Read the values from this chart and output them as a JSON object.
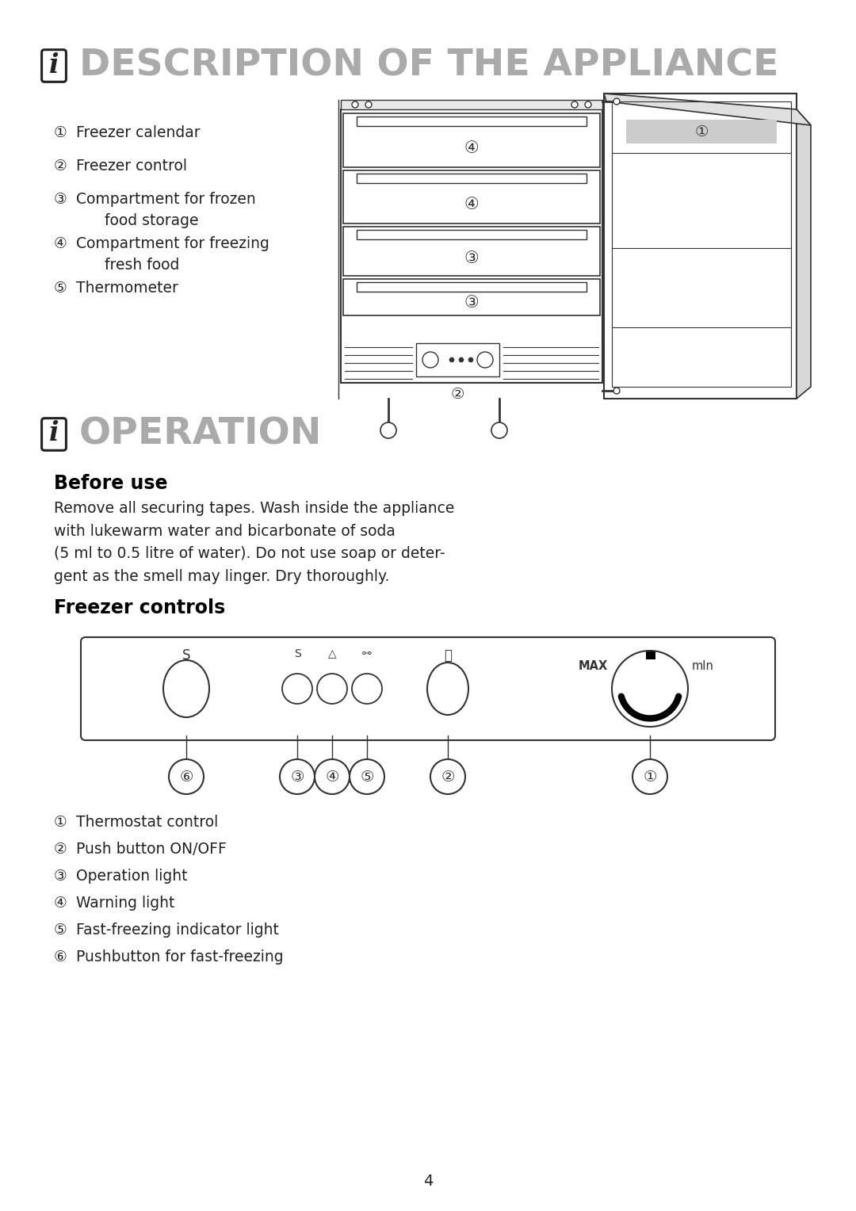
{
  "title1": "DESCRIPTION OF THE APPLIANCE",
  "title2": "OPERATION",
  "section1_items": [
    [
      "①",
      "Freezer calendar"
    ],
    [
      "②",
      "Freezer control"
    ],
    [
      "③",
      "Compartment for frozen\nfood storage"
    ],
    [
      "④",
      "Compartment for freezing\nfresh food"
    ],
    [
      "⑤",
      "Thermometer"
    ]
  ],
  "before_use_title": "Before use",
  "before_use_text": "Remove all securing tapes. Wash inside the appliance\nwith lukewarm water and bicarbonate of soda\n(5 ml to 0.5 litre of water). Do not use soap or deter-\ngent as the smell may linger. Dry thoroughly.",
  "freezer_controls_title": "Freezer controls",
  "section2_items": [
    [
      "①",
      "Thermostat control"
    ],
    [
      "②",
      "Push button ON/OFF"
    ],
    [
      "③",
      "Operation light"
    ],
    [
      "④",
      "Warning light"
    ],
    [
      "⑤",
      "Fast-freezing indicator light"
    ],
    [
      "⑥",
      "Pushbutton for fast-freezing"
    ]
  ],
  "page_number": "4",
  "bg_color": "#ffffff",
  "text_color": "#222222",
  "title_color": "#aaaaaa",
  "heading_color": "#000000",
  "line_color": "#333333"
}
